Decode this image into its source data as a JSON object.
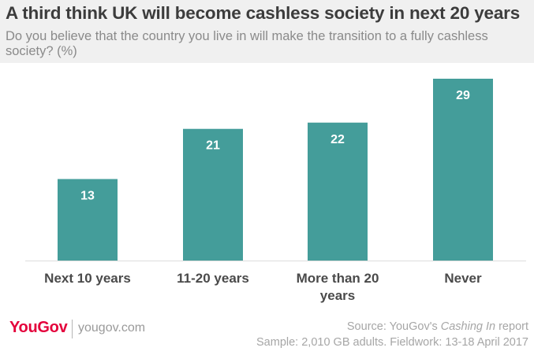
{
  "chart_data": {
    "type": "bar",
    "title": "A third think UK will become cashless society in next 20 years",
    "subtitle": "Do you believe that the country you live in will make the transition to a fully cashless society? (%)",
    "categories": [
      "Next 10 years",
      "11-20 years",
      "More than 20 years",
      "Never"
    ],
    "values": [
      13,
      21,
      22,
      29
    ],
    "ylim": [
      0,
      30
    ],
    "grid": false,
    "legend": "none",
    "bar_color": "#449d9a",
    "label_color": "#ffffff"
  },
  "footer": {
    "brand": "YouGov",
    "site": "yougov.com",
    "source_prefix": "Source: YouGov's ",
    "source_title": "Cashing In",
    "source_suffix": " report",
    "sample": "Sample: 2,010 GB adults. Fieldwork: 13-18 April 2017"
  },
  "colors": {
    "brand": "#e4003b",
    "header_bg": "#f0f0f0",
    "title": "#3c3c3c",
    "muted": "#a6a6a6"
  }
}
